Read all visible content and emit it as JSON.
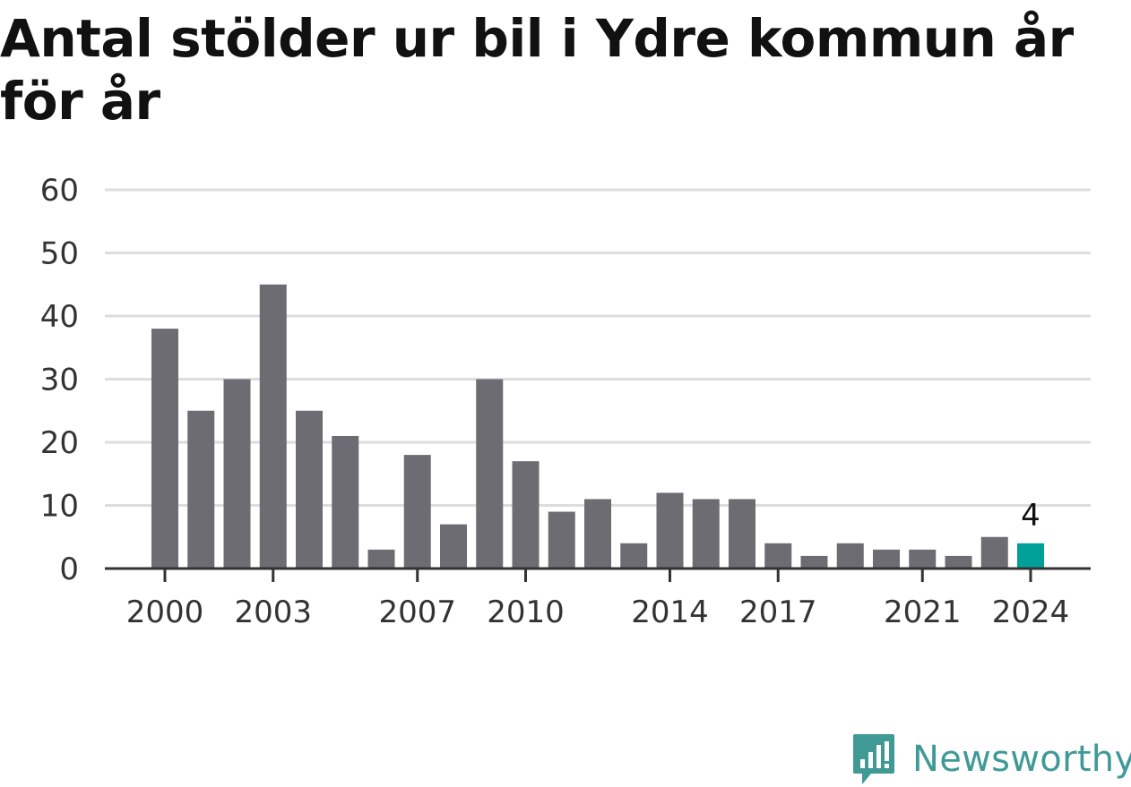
{
  "title": "Antal stölder ur bil i Ydre kommun år för år",
  "brand": {
    "name": "Newsworthy",
    "color": "#3f9a96",
    "icon": "newsworthy-logo-icon"
  },
  "colors": {
    "bar": "#6d6c72",
    "highlight": "#00a099",
    "grid": "#dddddd",
    "axis": "#333333"
  },
  "chart_data": {
    "type": "bar",
    "title": "Antal stölder ur bil i Ydre kommun år för år",
    "xlabel": "",
    "ylabel": "",
    "categories": [
      2000,
      2001,
      2002,
      2003,
      2004,
      2005,
      2006,
      2007,
      2008,
      2009,
      2010,
      2011,
      2012,
      2013,
      2014,
      2015,
      2016,
      2017,
      2018,
      2019,
      2020,
      2021,
      2022,
      2023,
      2024
    ],
    "values": [
      38,
      25,
      30,
      45,
      25,
      21,
      3,
      18,
      7,
      30,
      17,
      9,
      11,
      4,
      12,
      11,
      11,
      4,
      2,
      4,
      3,
      3,
      2,
      5,
      4
    ],
    "ylim": [
      0,
      60
    ],
    "yticks": [
      0,
      10,
      20,
      30,
      40,
      50,
      60
    ],
    "xtick_labels": [
      "2000",
      "2003",
      "2007",
      "2010",
      "2014",
      "2017",
      "2021",
      "2024"
    ],
    "highlight": {
      "category": 2024,
      "label": "4"
    },
    "grid": true,
    "legend": "none"
  }
}
